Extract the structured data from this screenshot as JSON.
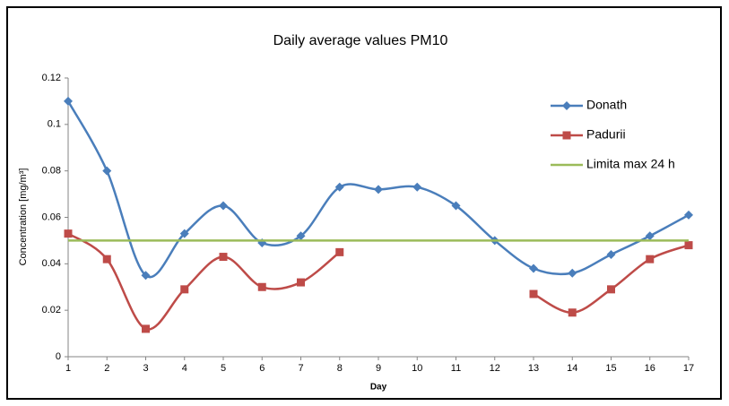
{
  "chart_data": {
    "type": "line",
    "title": "Daily average values PM10",
    "x_label": "Day",
    "y_label": "Concentration [mg/m³]",
    "x": [
      1,
      2,
      3,
      4,
      5,
      6,
      7,
      8,
      9,
      10,
      11,
      12,
      13,
      14,
      15,
      16,
      17
    ],
    "xlim": [
      1,
      17
    ],
    "ylim": [
      0,
      0.12
    ],
    "yticks": [
      0,
      0.02,
      0.04,
      0.06,
      0.08,
      0.1,
      0.12
    ],
    "grid": false,
    "legend": "right",
    "smooth": true,
    "series": [
      {
        "name": "Donath",
        "color": "#4a7ebb",
        "marker": "diamond",
        "values": [
          0.11,
          0.08,
          0.035,
          0.053,
          0.065,
          0.049,
          0.052,
          0.073,
          0.072,
          0.073,
          0.065,
          0.05,
          0.038,
          0.036,
          0.044,
          0.052,
          0.061
        ]
      },
      {
        "name": "Padurii",
        "color": "#be4b48",
        "marker": "square",
        "values": [
          0.053,
          0.042,
          0.012,
          0.029,
          0.043,
          0.03,
          0.032,
          0.045,
          null,
          null,
          null,
          null,
          0.027,
          0.019,
          0.029,
          0.042,
          0.048
        ]
      },
      {
        "name": "Limita max 24 h",
        "color": "#9bbb59",
        "marker": "none",
        "values": [
          0.05,
          0.05,
          0.05,
          0.05,
          0.05,
          0.05,
          0.05,
          0.05,
          0.05,
          0.05,
          0.05,
          0.05,
          0.05,
          0.05,
          0.05,
          0.05,
          0.05
        ]
      }
    ]
  }
}
